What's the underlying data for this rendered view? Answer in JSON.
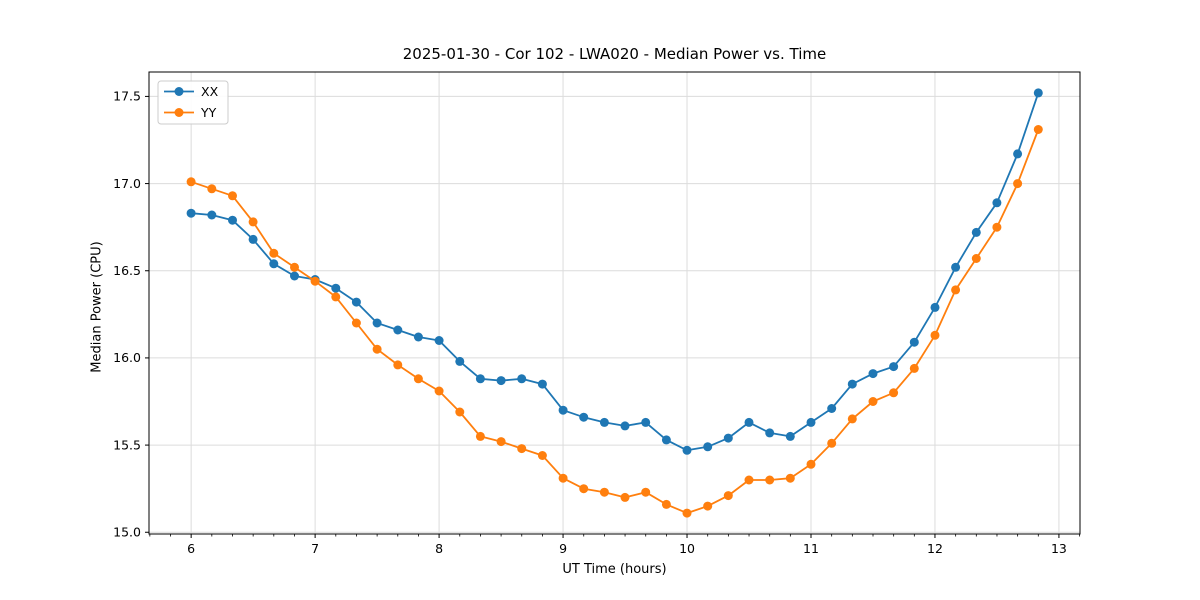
{
  "figure": {
    "background": "#ffffff"
  },
  "chart_data": {
    "type": "line",
    "title": "2025-01-30 - Cor 102 - LWA020 - Median Power vs. Time",
    "xlabel": "UT Time (hours)",
    "ylabel": "Median Power (CPU)",
    "xlim": [
      5.66,
      13.17
    ],
    "ylim": [
      14.99,
      17.64
    ],
    "x_ticks": [
      6,
      7,
      8,
      9,
      10,
      11,
      12,
      13
    ],
    "y_ticks": [
      15.0,
      15.5,
      16.0,
      16.5,
      17.0,
      17.5
    ],
    "x_minor_step": 0.16667,
    "grid": true,
    "grid_color": "#dcdcdc",
    "spine_color": "#000000",
    "legend_position": "upper-left",
    "x_step_minutes": 10,
    "x": [
      6.0,
      6.1667,
      6.3333,
      6.5,
      6.6667,
      6.8333,
      7.0,
      7.1667,
      7.3333,
      7.5,
      7.6667,
      7.8333,
      8.0,
      8.1667,
      8.3333,
      8.5,
      8.6667,
      8.8333,
      9.0,
      9.1667,
      9.3333,
      9.5,
      9.6667,
      9.8333,
      10.0,
      10.1667,
      10.3333,
      10.5,
      10.6667,
      10.8333,
      11.0,
      11.1667,
      11.3333,
      11.5,
      11.6667,
      11.8333,
      12.0,
      12.1667,
      12.3333,
      12.5,
      12.6667,
      12.8333
    ],
    "series": [
      {
        "name": "XX",
        "color": "#1f77b4",
        "values": [
          16.83,
          16.82,
          16.79,
          16.68,
          16.54,
          16.47,
          16.45,
          16.4,
          16.32,
          16.2,
          16.16,
          16.12,
          16.1,
          15.98,
          15.88,
          15.87,
          15.88,
          15.85,
          15.7,
          15.66,
          15.63,
          15.61,
          15.63,
          15.53,
          15.47,
          15.49,
          15.54,
          15.63,
          15.57,
          15.55,
          15.63,
          15.71,
          15.85,
          15.91,
          15.95,
          16.09,
          16.29,
          16.52,
          16.72,
          16.89,
          17.17,
          17.52
        ]
      },
      {
        "name": "YY",
        "color": "#ff7f0e",
        "values": [
          17.01,
          16.97,
          16.93,
          16.78,
          16.6,
          16.52,
          16.44,
          16.35,
          16.2,
          16.05,
          15.96,
          15.88,
          15.81,
          15.69,
          15.55,
          15.52,
          15.48,
          15.44,
          15.31,
          15.25,
          15.23,
          15.2,
          15.23,
          15.16,
          15.11,
          15.15,
          15.21,
          15.3,
          15.3,
          15.31,
          15.39,
          15.51,
          15.65,
          15.75,
          15.8,
          15.94,
          16.13,
          16.39,
          16.57,
          16.75,
          17.0,
          17.31
        ]
      }
    ]
  }
}
